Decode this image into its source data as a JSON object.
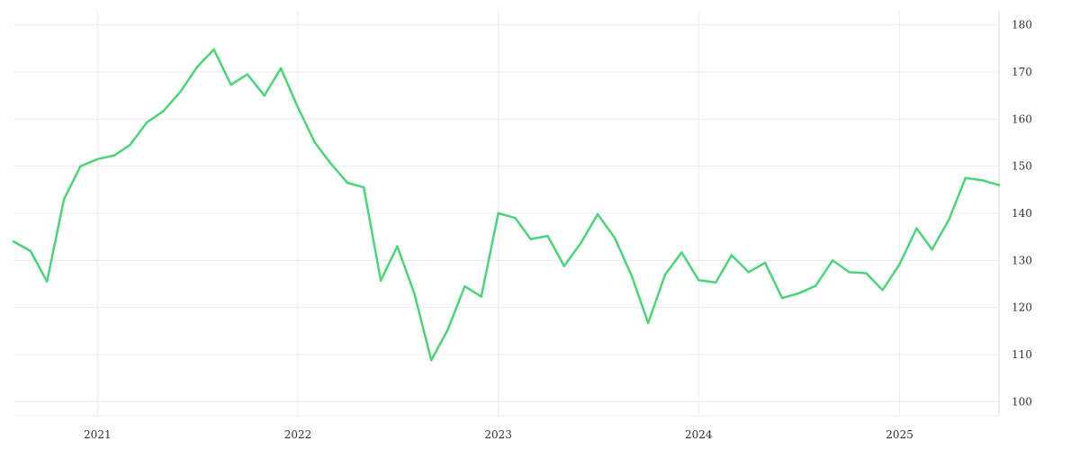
{
  "chart_data": {
    "type": "line",
    "title": "",
    "xlabel": "",
    "ylabel": "",
    "grid": true,
    "legend": "none",
    "ylim": [
      97,
      183
    ],
    "xlim": [
      "2020-08-01",
      "2025-07-01"
    ],
    "x_ticks": [
      "2021",
      "2022",
      "2023",
      "2024",
      "2025"
    ],
    "y_ticks": [
      100,
      110,
      120,
      130,
      140,
      150,
      160,
      170,
      180
    ],
    "y_axis_side": "right",
    "series": [
      {
        "color": "#4cd47b",
        "points": [
          [
            "2020-08",
            134
          ],
          [
            "2020-09",
            132
          ],
          [
            "2020-10",
            125.5
          ],
          [
            "2020-11",
            143
          ],
          [
            "2020-12",
            150
          ],
          [
            "2021-01",
            151.5
          ],
          [
            "2021-02",
            152.3
          ],
          [
            "2021-03",
            154.5
          ],
          [
            "2021-04",
            159.3
          ],
          [
            "2021-05",
            161.7
          ],
          [
            "2021-06",
            165.8
          ],
          [
            "2021-07",
            171
          ],
          [
            "2021-08",
            174.8
          ],
          [
            "2021-09",
            167.3
          ],
          [
            "2021-10",
            169.5
          ],
          [
            "2021-11",
            165
          ],
          [
            "2021-12",
            170.8
          ],
          [
            "2022-01",
            162.5
          ],
          [
            "2022-02",
            155
          ],
          [
            "2022-03",
            150.7
          ],
          [
            "2022-04",
            146.5
          ],
          [
            "2022-05",
            145.5
          ],
          [
            "2022-06",
            125.7
          ],
          [
            "2022-07",
            133
          ],
          [
            "2022-08",
            123
          ],
          [
            "2022-09",
            108.8
          ],
          [
            "2022-10",
            115.3
          ],
          [
            "2022-11",
            124.5
          ],
          [
            "2022-12",
            122.3
          ],
          [
            "2023-01",
            140
          ],
          [
            "2023-02",
            139
          ],
          [
            "2023-03",
            134.5
          ],
          [
            "2023-04",
            135.2
          ],
          [
            "2023-05",
            128.8
          ],
          [
            "2023-06",
            133.8
          ],
          [
            "2023-07",
            139.8
          ],
          [
            "2023-08",
            134.8
          ],
          [
            "2023-09",
            126.7
          ],
          [
            "2023-10",
            116.7
          ],
          [
            "2023-11",
            127
          ],
          [
            "2023-12",
            131.7
          ],
          [
            "2024-01",
            125.8
          ],
          [
            "2024-02",
            125.3
          ],
          [
            "2024-03",
            131.1
          ],
          [
            "2024-04",
            127.5
          ],
          [
            "2024-05",
            129.5
          ],
          [
            "2024-06",
            122
          ],
          [
            "2024-07",
            123
          ],
          [
            "2024-08",
            124.6
          ],
          [
            "2024-09",
            130
          ],
          [
            "2024-10",
            127.5
          ],
          [
            "2024-11",
            127.3
          ],
          [
            "2024-12",
            123.7
          ],
          [
            "2025-01",
            129.2
          ],
          [
            "2025-02",
            136.8
          ],
          [
            "2025-03",
            132.3
          ],
          [
            "2025-04",
            138.7
          ],
          [
            "2025-05",
            147.5
          ],
          [
            "2025-06",
            147
          ],
          [
            "2025-07",
            146
          ]
        ]
      }
    ]
  }
}
